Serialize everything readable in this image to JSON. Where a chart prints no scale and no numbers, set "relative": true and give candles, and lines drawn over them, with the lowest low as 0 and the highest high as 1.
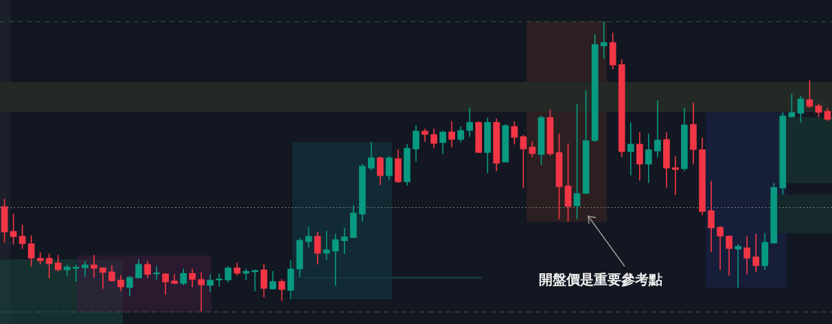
{
  "chart_data": {
    "type": "candlestick",
    "relative": true,
    "categories": [
      null,
      null,
      null,
      null,
      null,
      null,
      null,
      null,
      null,
      null,
      null,
      null,
      null,
      null,
      null,
      null,
      null,
      null,
      null,
      null,
      null,
      null,
      null,
      null,
      null,
      null,
      null,
      null,
      null,
      null,
      null,
      null,
      null,
      null,
      null,
      null,
      null,
      null,
      null,
      null,
      null,
      null,
      null,
      null,
      null,
      null,
      null,
      null,
      null,
      null,
      null,
      null,
      null,
      null,
      null,
      null,
      null,
      null,
      null,
      null,
      null,
      null,
      null,
      null,
      null,
      null,
      null,
      null,
      null,
      null,
      null,
      null,
      null,
      null,
      null,
      null,
      null,
      null,
      null,
      null,
      null,
      null,
      null,
      null,
      null,
      null,
      null,
      null,
      null,
      null,
      null,
      null,
      null
    ],
    "ohlc": [
      [
        0.362,
        0.388,
        0.239,
        0.274
      ],
      [
        0.277,
        0.336,
        0.232,
        0.258
      ],
      [
        0.26,
        0.298,
        0.217,
        0.234
      ],
      [
        0.234,
        0.262,
        0.156,
        0.184
      ],
      [
        0.184,
        0.203,
        0.163,
        0.175
      ],
      [
        0.184,
        0.199,
        0.116,
        0.165
      ],
      [
        0.168,
        0.194,
        0.139,
        0.144
      ],
      [
        0.144,
        0.161,
        0.123,
        0.154
      ],
      [
        0.149,
        0.161,
        0.104,
        0.153
      ],
      [
        0.151,
        0.173,
        0.121,
        0.161
      ],
      [
        0.161,
        0.194,
        0.118,
        0.149
      ],
      [
        0.151,
        0.151,
        0.08,
        0.135
      ],
      [
        0.137,
        0.158,
        0.106,
        0.106
      ],
      [
        0.109,
        0.125,
        0.071,
        0.085
      ],
      [
        0.083,
        0.123,
        0.054,
        0.118
      ],
      [
        0.116,
        0.18,
        0.116,
        0.163
      ],
      [
        0.163,
        0.175,
        0.116,
        0.128
      ],
      [
        0.13,
        0.156,
        0.111,
        0.134
      ],
      [
        0.13,
        0.132,
        0.059,
        0.102
      ],
      [
        0.106,
        0.128,
        0.095,
        0.097
      ],
      [
        0.097,
        0.147,
        0.092,
        0.132
      ],
      [
        0.132,
        0.147,
        0.085,
        0.111
      ],
      [
        0.111,
        0.135,
        0,
        0.092
      ],
      [
        0.09,
        0.128,
        0.069,
        0.109
      ],
      [
        0.109,
        0.13,
        0.087,
        0.113
      ],
      [
        0.109,
        0.156,
        0.102,
        0.151
      ],
      [
        0.151,
        0.168,
        0.125,
        0.132
      ],
      [
        0.132,
        0.147,
        0.109,
        0.139
      ],
      [
        0.137,
        0.144,
        0.071,
        0.142
      ],
      [
        0.144,
        0.163,
        0.05,
        0.08
      ],
      [
        0.078,
        0.139,
        0.078,
        0.104
      ],
      [
        0.104,
        0.111,
        0.038,
        0.076
      ],
      [
        0.073,
        0.177,
        0.043,
        0.147
      ],
      [
        0.147,
        0.253,
        0.121,
        0.246
      ],
      [
        0.241,
        0.291,
        0.222,
        0.26
      ],
      [
        0.26,
        0.274,
        0.163,
        0.201
      ],
      [
        0.201,
        0.277,
        0.18,
        0.213
      ],
      [
        0.208,
        0.267,
        0.09,
        0.248
      ],
      [
        0.244,
        0.288,
        0.199,
        0.258
      ],
      [
        0.255,
        0.366,
        0.255,
        0.34
      ],
      [
        0.336,
        0.508,
        0.312,
        0.501
      ],
      [
        0.494,
        0.584,
        0.487,
        0.53
      ],
      [
        0.53,
        0.534,
        0.437,
        0.468
      ],
      [
        0.468,
        0.534,
        0.454,
        0.53
      ],
      [
        0.527,
        0.558,
        0.444,
        0.447
      ],
      [
        0.447,
        0.577,
        0.435,
        0.563
      ],
      [
        0.56,
        0.641,
        0.518,
        0.622
      ],
      [
        0.622,
        0.629,
        0.586,
        0.61
      ],
      [
        0.61,
        0.629,
        0.563,
        0.579
      ],
      [
        0.582,
        0.622,
        0.544,
        0.619
      ],
      [
        0.619,
        0.655,
        0.567,
        0.593
      ],
      [
        0.593,
        0.638,
        0.584,
        0.624
      ],
      [
        0.624,
        0.702,
        0.603,
        0.652
      ],
      [
        0.652,
        0.655,
        0.548,
        0.548
      ],
      [
        0.548,
        0.667,
        0.478,
        0.652
      ],
      [
        0.652,
        0.664,
        0.485,
        0.511
      ],
      [
        0.515,
        0.645,
        0.515,
        0.641
      ],
      [
        0.638,
        0.655,
        0.577,
        0.6
      ],
      [
        0.603,
        0.608,
        0.426,
        0.56
      ],
      [
        0.567,
        0.586,
        0.532,
        0.544
      ],
      [
        0.541,
        0.674,
        0.506,
        0.669
      ],
      [
        0.669,
        0.695,
        0.537,
        0.544
      ],
      [
        0.548,
        0.612,
        0.319,
        0.43
      ],
      [
        0.433,
        0.579,
        0.31,
        0.362
      ],
      [
        0.364,
        0.714,
        0.319,
        0.407
      ],
      [
        0.407,
        0.761,
        0.407,
        0.589
      ],
      [
        0.589,
        0.955,
        0.586,
        0.92
      ],
      [
        0.915,
        1,
        0.872,
        0.927
      ],
      [
        0.927,
        0.96,
        0.835,
        0.849
      ],
      [
        0.851,
        0.868,
        0.534,
        0.551
      ],
      [
        0.551,
        0.65,
        0.47,
        0.577
      ],
      [
        0.577,
        0.617,
        0.452,
        0.508
      ],
      [
        0.508,
        0.612,
        0.444,
        0.558
      ],
      [
        0.553,
        0.726,
        0.532,
        0.591
      ],
      [
        0.593,
        0.617,
        0.428,
        0.494
      ],
      [
        0.496,
        0.534,
        0.402,
        0.489
      ],
      [
        0.492,
        0.702,
        0.485,
        0.643
      ],
      [
        0.645,
        0.719,
        0.508,
        0.558
      ],
      [
        0.558,
        0.598,
        0.333,
        0.345
      ],
      [
        0.348,
        0.449,
        0.206,
        0.288
      ],
      [
        0.291,
        0.293,
        0.144,
        0.26
      ],
      [
        0.26,
        0.262,
        0.125,
        0.217
      ],
      [
        0.215,
        0.232,
        0.083,
        0.225
      ],
      [
        0.22,
        0.258,
        0.13,
        0.184
      ],
      [
        0.189,
        0.267,
        0.137,
        0.158
      ],
      [
        0.158,
        0.27,
        0.144,
        0.239
      ],
      [
        0.236,
        0.442,
        0.236,
        0.428
      ],
      [
        0.426,
        0.686,
        0.404,
        0.674
      ],
      [
        0.671,
        0.749,
        0.669,
        0.686
      ],
      [
        0.683,
        0.742,
        0.652,
        0.733
      ],
      [
        0.73,
        0.797,
        0.702,
        0.707
      ],
      [
        0.709,
        0.716,
        0.671,
        0.686
      ],
      [
        0.69,
        0.7,
        0.657,
        0.662
      ]
    ],
    "colors": [
      "#f23645",
      "#f23645",
      "#f23645",
      "#f23645",
      "#f23645",
      "#f23645",
      "#f23645",
      "#089981",
      "#089981",
      "#089981",
      "#f23645",
      "#f23645",
      "#f23645",
      "#f23645",
      "#089981",
      "#089981",
      "#f23645",
      "#089981",
      "#f23645",
      "#f23645",
      "#089981",
      "#f23645",
      "#f23645",
      "#089981",
      "#089981",
      "#089981",
      "#f23645",
      "#089981",
      "#089981",
      "#f23645",
      "#089981",
      "#f23645",
      "#089981",
      "#089981",
      "#089981",
      "#f23645",
      "#089981",
      "#089981",
      "#089981",
      "#089981",
      "#089981",
      "#089981",
      "#f23645",
      "#089981",
      "#f23645",
      "#089981",
      "#089981",
      "#f23645",
      "#f23645",
      "#089981",
      "#f23645",
      "#089981",
      "#089981",
      "#f23645",
      "#089981",
      "#f23645",
      "#089981",
      "#f23645",
      "#f23645",
      "#f23645",
      "#089981",
      "#f23645",
      "#f23645",
      "#f23645",
      "#089981",
      "#089981",
      "#089981",
      "#089981",
      "#f23645",
      "#f23645",
      "#089981",
      "#f23645",
      "#089981",
      "#089981",
      "#f23645",
      "#f23645",
      "#089981",
      "#f23645",
      "#f23645",
      "#f23645",
      "#f23645",
      "#f23645",
      "#089981",
      "#f23645",
      "#f23645",
      "#089981",
      "#089981",
      "#089981",
      "#089981",
      "#089981",
      "#f23645",
      "#f23645",
      "#f23645"
    ],
    "ref_lines": [
      {
        "axis": "y",
        "value": 1,
        "color": "#2e5e3e",
        "line_style": "dashed"
      },
      {
        "axis": "y",
        "value": 0,
        "color": "#2e5e3e",
        "line_style": "dashed"
      },
      {
        "axis": "y",
        "value": 0.359,
        "color": "#8a8a7a",
        "line_style": "dotted"
      }
    ],
    "bands": [
      {
        "axis": "y",
        "from": 0.688,
        "to": 0.79,
        "color": "#232a26"
      }
    ],
    "annotations": [
      "開盤價是重要參考點"
    ]
  }
}
